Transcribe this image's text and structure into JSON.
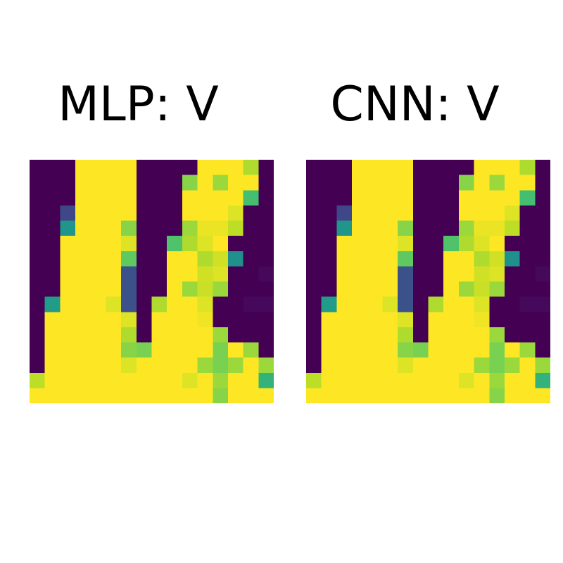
{
  "chart_data": [
    {
      "type": "heatmap",
      "title": "MLP: V",
      "xlabel": "",
      "ylabel": "",
      "colormap": "viridis",
      "value_range": [
        0,
        1
      ],
      "grid": false,
      "axes_visible": false,
      "values": [
        [
          0,
          0,
          0,
          1,
          1,
          1,
          1,
          0,
          0,
          0,
          0,
          1,
          1,
          1,
          0.88,
          0
        ],
        [
          0,
          0,
          0,
          1,
          1,
          1,
          1,
          0,
          0,
          0,
          0.82,
          1,
          0.85,
          1,
          1,
          0
        ],
        [
          0,
          0,
          0,
          1,
          1,
          1,
          1,
          0,
          0,
          0,
          1,
          1,
          1,
          1,
          0.7,
          0
        ],
        [
          0,
          0,
          0.22,
          1,
          1,
          1,
          1,
          0,
          0,
          0,
          1,
          1,
          1,
          0.95,
          0,
          0
        ],
        [
          0,
          0,
          0.52,
          1,
          1,
          1,
          0.82,
          0,
          0,
          0,
          0.85,
          0.97,
          0.97,
          0.9,
          0,
          0
        ],
        [
          0,
          0,
          1,
          1,
          1,
          1,
          0.95,
          0,
          0,
          0.72,
          0.88,
          0.95,
          1,
          0,
          0,
          0
        ],
        [
          0,
          0,
          1,
          1,
          1,
          1,
          0.75,
          0,
          0,
          1,
          1,
          0.88,
          0.93,
          0.5,
          0,
          0
        ],
        [
          0,
          0,
          1,
          1,
          1,
          1,
          0.25,
          0,
          0,
          1,
          1,
          0.93,
          0.95,
          0,
          0,
          0.02
        ],
        [
          0,
          0,
          1,
          1,
          1,
          1,
          0.25,
          0,
          0,
          1,
          0.85,
          0.92,
          0.85,
          0,
          0,
          0
        ],
        [
          0,
          0.55,
          1,
          1,
          1,
          0.95,
          0.25,
          0,
          0.88,
          1,
          1,
          0.95,
          0,
          0,
          0.02,
          0.02
        ],
        [
          0,
          1,
          1,
          1,
          1,
          1,
          0.95,
          0,
          1,
          1,
          1,
          0.98,
          0,
          0,
          0,
          0
        ],
        [
          0,
          1,
          1,
          1,
          1,
          1,
          0.88,
          0,
          1,
          1,
          1,
          1,
          0.85,
          0,
          0,
          0
        ],
        [
          0,
          1,
          1,
          1,
          1,
          1,
          0.82,
          0.8,
          1,
          1,
          1,
          1,
          0.8,
          1,
          0.85,
          0
        ],
        [
          0,
          1,
          1,
          1,
          1,
          1,
          0.95,
          1,
          1,
          1,
          1,
          0.85,
          0.8,
          0.85,
          1,
          0.85
        ],
        [
          0.9,
          1,
          1,
          1,
          1,
          1,
          1,
          1,
          1,
          1,
          0.95,
          1,
          0.85,
          1,
          1,
          0.65
        ],
        [
          1,
          1,
          1,
          1,
          1,
          1,
          1,
          1,
          1,
          1,
          1,
          1,
          0.82,
          1,
          1,
          1
        ]
      ]
    },
    {
      "type": "heatmap",
      "title": "CNN: V",
      "xlabel": "",
      "ylabel": "",
      "colormap": "viridis",
      "value_range": [
        0,
        1
      ],
      "grid": false,
      "axes_visible": false,
      "values": [
        [
          0,
          0,
          0,
          1,
          1,
          1,
          1,
          0,
          0,
          0,
          0,
          1,
          1,
          1,
          0.88,
          0
        ],
        [
          0,
          0,
          0,
          1,
          1,
          1,
          1,
          0,
          0,
          0,
          0.82,
          1,
          0.85,
          1,
          1,
          0
        ],
        [
          0,
          0,
          0,
          1,
          1,
          1,
          1,
          0,
          0,
          0,
          1,
          1,
          1,
          1,
          0.7,
          0
        ],
        [
          0,
          0,
          0.22,
          1,
          1,
          1,
          1,
          0,
          0,
          0,
          1,
          1,
          1,
          0.95,
          0,
          0
        ],
        [
          0,
          0,
          0.52,
          1,
          1,
          1,
          0.82,
          0,
          0,
          0,
          0.85,
          0.97,
          0.97,
          0.9,
          0,
          0
        ],
        [
          0,
          0,
          1,
          1,
          1,
          1,
          0.95,
          0,
          0,
          0.72,
          0.88,
          0.95,
          1,
          0,
          0,
          0
        ],
        [
          0,
          0,
          1,
          1,
          1,
          1,
          0.75,
          0,
          0,
          1,
          1,
          0.88,
          0.93,
          0.5,
          0,
          0
        ],
        [
          0,
          0,
          1,
          1,
          1,
          1,
          0.25,
          0,
          0,
          1,
          1,
          0.93,
          0.95,
          0,
          0,
          0.02
        ],
        [
          0,
          0,
          1,
          1,
          1,
          1,
          0.25,
          0,
          0,
          1,
          0.85,
          0.92,
          0.85,
          0,
          0,
          0
        ],
        [
          0,
          0.55,
          1,
          1,
          1,
          0.95,
          0.25,
          0,
          0.88,
          1,
          1,
          0.95,
          0,
          0,
          0.02,
          0.02
        ],
        [
          0,
          1,
          1,
          1,
          1,
          1,
          0.95,
          0,
          1,
          1,
          1,
          0.98,
          0,
          0,
          0,
          0
        ],
        [
          0,
          1,
          1,
          1,
          1,
          1,
          0.88,
          0,
          1,
          1,
          1,
          1,
          0.85,
          0,
          0,
          0
        ],
        [
          0,
          1,
          1,
          1,
          1,
          1,
          0.82,
          0.8,
          1,
          1,
          1,
          1,
          0.8,
          1,
          0.85,
          0
        ],
        [
          0,
          1,
          1,
          1,
          1,
          1,
          0.95,
          1,
          1,
          1,
          1,
          0.85,
          0.8,
          0.85,
          1,
          0.85
        ],
        [
          0.9,
          1,
          1,
          1,
          1,
          1,
          1,
          1,
          1,
          1,
          0.95,
          1,
          0.85,
          1,
          1,
          0.65
        ],
        [
          1,
          1,
          1,
          1,
          1,
          1,
          1,
          1,
          1,
          1,
          1,
          1,
          0.82,
          1,
          1,
          1
        ]
      ]
    }
  ]
}
